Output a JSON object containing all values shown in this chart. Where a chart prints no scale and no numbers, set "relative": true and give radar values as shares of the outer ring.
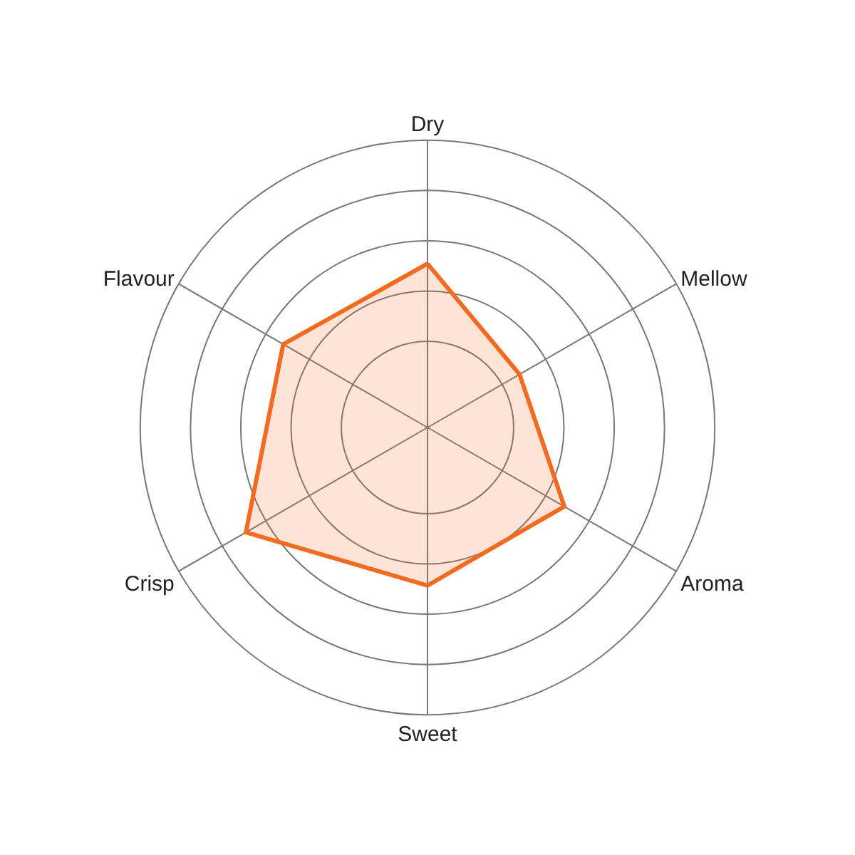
{
  "chart_data": {
    "type": "radar",
    "relative": true,
    "grid": true,
    "categories": [
      "Dry",
      "Mellow",
      "Aroma",
      "Sweet",
      "Crisp",
      "Flavour"
    ],
    "series": [
      {
        "color": "#f26b21",
        "values": [
          0.57,
          0.37,
          0.55,
          0.55,
          0.73,
          0.58
        ]
      }
    ]
  }
}
